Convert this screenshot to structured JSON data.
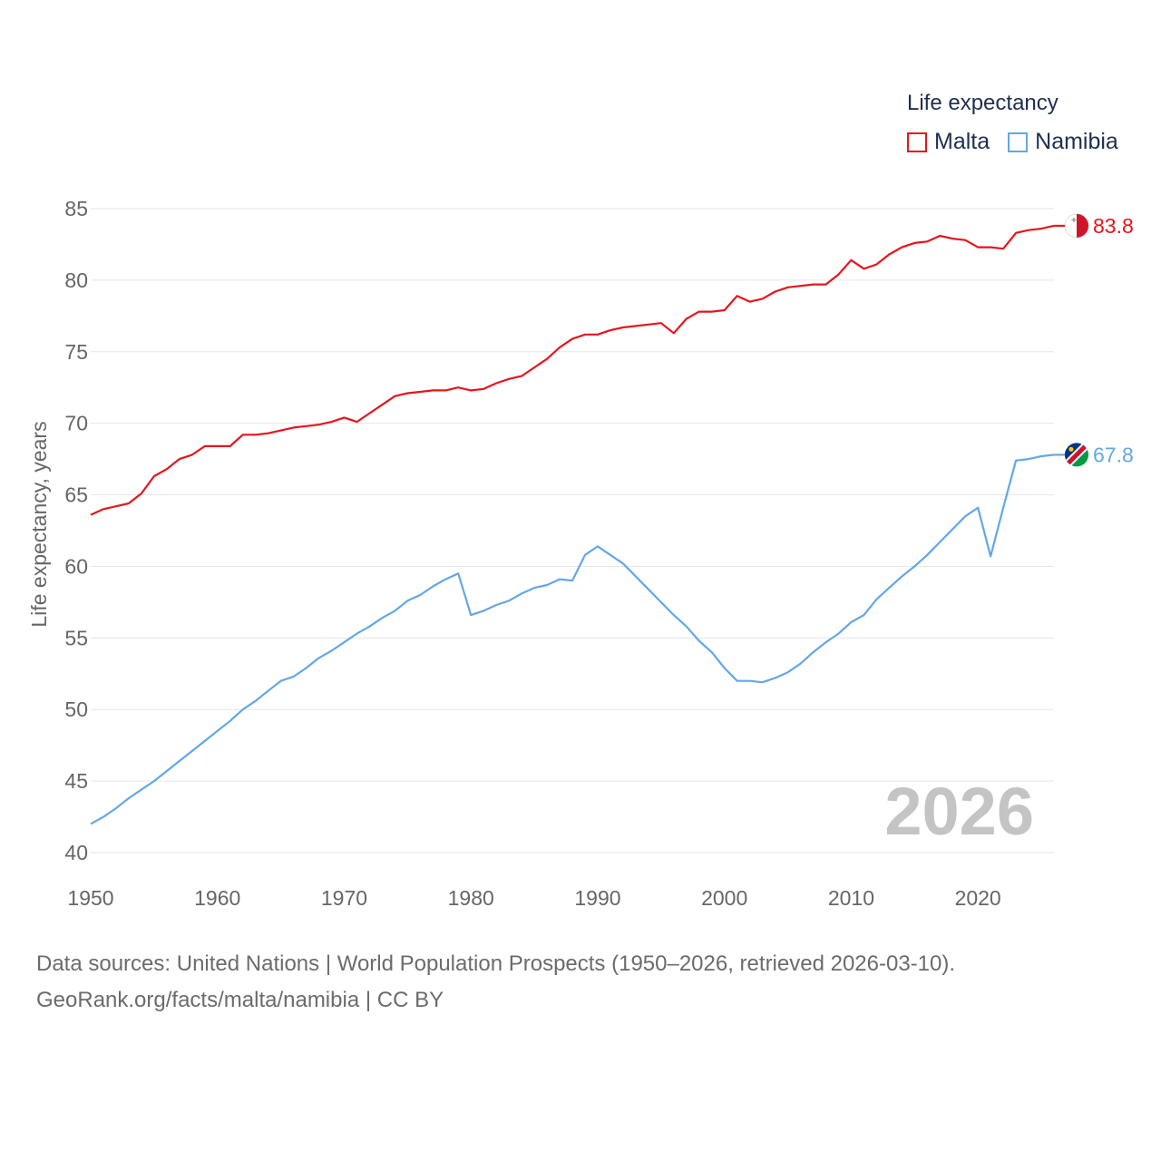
{
  "legend": {
    "title": "Life expectancy"
  },
  "footer": {
    "line1": "Data sources: United Nations | World Population Prospects (1950–2026, retrieved 2026-03-10).",
    "line2": "GeoRank.org/facts/malta/namibia | CC BY"
  },
  "chart_data": {
    "type": "line",
    "title": "Life expectancy",
    "xlabel": "",
    "ylabel": "Life expectancy, years",
    "xlim": [
      1950,
      2026
    ],
    "ylim": [
      40,
      85
    ],
    "x_ticks": [
      1950,
      1960,
      1970,
      1980,
      1990,
      2000,
      2010,
      2020
    ],
    "y_ticks": [
      40,
      45,
      50,
      55,
      60,
      65,
      70,
      75,
      80,
      85
    ],
    "grid": true,
    "legend_position": "top-right",
    "watermark_year": "2026",
    "x": [
      1950,
      1951,
      1952,
      1953,
      1954,
      1955,
      1956,
      1957,
      1958,
      1959,
      1960,
      1961,
      1962,
      1963,
      1964,
      1965,
      1966,
      1967,
      1968,
      1969,
      1970,
      1971,
      1972,
      1973,
      1974,
      1975,
      1976,
      1977,
      1978,
      1979,
      1980,
      1981,
      1982,
      1983,
      1984,
      1985,
      1986,
      1987,
      1988,
      1989,
      1990,
      1991,
      1992,
      1993,
      1994,
      1995,
      1996,
      1997,
      1998,
      1999,
      2000,
      2001,
      2002,
      2003,
      2004,
      2005,
      2006,
      2007,
      2008,
      2009,
      2010,
      2011,
      2012,
      2013,
      2014,
      2015,
      2016,
      2017,
      2018,
      2019,
      2020,
      2021,
      2022,
      2023,
      2024,
      2025,
      2026
    ],
    "series": [
      {
        "name": "Malta",
        "color": "#e8141c",
        "end_label": "83.8",
        "values": [
          63.6,
          64.0,
          64.2,
          64.4,
          65.1,
          66.3,
          66.8,
          67.5,
          67.8,
          68.4,
          68.4,
          68.4,
          69.2,
          69.2,
          69.3,
          69.5,
          69.7,
          69.8,
          69.9,
          70.1,
          70.4,
          70.1,
          70.7,
          71.3,
          71.9,
          72.1,
          72.2,
          72.3,
          72.3,
          72.5,
          72.3,
          72.4,
          72.8,
          73.1,
          73.3,
          73.9,
          74.5,
          75.3,
          75.9,
          76.2,
          76.2,
          76.5,
          76.7,
          76.8,
          76.9,
          77.0,
          76.3,
          77.3,
          77.8,
          77.8,
          77.9,
          78.9,
          78.5,
          78.7,
          79.2,
          79.5,
          79.6,
          79.7,
          79.7,
          80.4,
          81.4,
          80.8,
          81.1,
          81.8,
          82.3,
          82.6,
          82.7,
          83.1,
          82.9,
          82.8,
          82.3,
          82.3,
          82.2,
          83.3,
          83.5,
          83.6,
          83.8
        ]
      },
      {
        "name": "Namibia",
        "color": "#63a7e6",
        "end_label": "67.8",
        "values": [
          42.0,
          42.5,
          43.1,
          43.8,
          44.4,
          45.0,
          45.7,
          46.4,
          47.1,
          47.8,
          48.5,
          49.2,
          50.0,
          50.6,
          51.3,
          52.0,
          52.3,
          52.9,
          53.6,
          54.1,
          54.7,
          55.3,
          55.8,
          56.4,
          56.9,
          57.6,
          58.0,
          58.6,
          59.1,
          59.5,
          56.6,
          56.9,
          57.3,
          57.6,
          58.1,
          58.5,
          58.7,
          59.1,
          59.0,
          60.8,
          61.4,
          60.8,
          60.2,
          59.3,
          58.4,
          57.5,
          56.6,
          55.8,
          54.8,
          54.0,
          52.9,
          52.0,
          52.0,
          51.9,
          52.2,
          52.6,
          53.2,
          54.0,
          54.7,
          55.3,
          56.1,
          56.6,
          57.7,
          58.5,
          59.3,
          60.0,
          60.8,
          61.7,
          62.6,
          63.5,
          64.1,
          60.7,
          64.1,
          67.4,
          67.5,
          67.7,
          67.8
        ]
      }
    ]
  }
}
